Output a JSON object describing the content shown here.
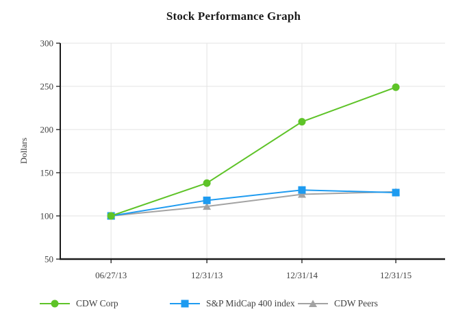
{
  "title": "Stock Performance Graph",
  "chart_data": {
    "type": "line",
    "title": "Stock Performance Graph",
    "xlabel": "",
    "ylabel": "Dollars",
    "x": [
      "06/27/13",
      "12/31/13",
      "12/31/14",
      "12/31/15"
    ],
    "series": [
      {
        "name": "CDW Corp",
        "marker": "circle",
        "color": "#5EC328",
        "values": [
          100,
          138,
          209,
          249
        ]
      },
      {
        "name": "S&P MidCap 400 index",
        "marker": "square",
        "color": "#1E9BF0",
        "values": [
          100,
          118,
          130,
          127
        ]
      },
      {
        "name": "CDW Peers",
        "marker": "triangle",
        "color": "#A3A3A3",
        "values": [
          100,
          111,
          125,
          128
        ]
      }
    ],
    "ylim": [
      50,
      300
    ],
    "yticks": [
      50,
      100,
      150,
      200,
      250,
      300
    ],
    "grid": true,
    "legend_position": "bottom"
  },
  "colors": {
    "gridline": "#e3e3e3",
    "axis": "#1a1a1a",
    "tick_label": "#404040",
    "background": "#ffffff"
  }
}
